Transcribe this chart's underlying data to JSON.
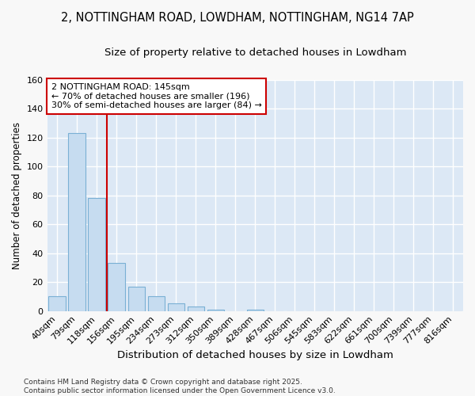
{
  "title_line1": "2, NOTTINGHAM ROAD, LOWDHAM, NOTTINGHAM, NG14 7AP",
  "title_line2": "Size of property relative to detached houses in Lowdham",
  "xlabel": "Distribution of detached houses by size in Lowdham",
  "ylabel": "Number of detached properties",
  "bar_values": [
    10,
    123,
    78,
    33,
    17,
    10,
    5,
    3,
    1,
    0,
    1,
    0,
    0,
    0,
    0,
    0,
    0,
    0,
    0,
    0,
    0
  ],
  "bar_labels": [
    "40sqm",
    "79sqm",
    "118sqm",
    "156sqm",
    "195sqm",
    "234sqm",
    "273sqm",
    "312sqm",
    "350sqm",
    "389sqm",
    "428sqm",
    "467sqm",
    "506sqm",
    "545sqm",
    "583sqm",
    "622sqm",
    "661sqm",
    "700sqm",
    "739sqm",
    "777sqm",
    "816sqm"
  ],
  "bar_color": "#c6dcf0",
  "bar_edge_color": "#7ab0d4",
  "vline_x": 2.5,
  "vline_color": "#cc0000",
  "annotation_text": "2 NOTTINGHAM ROAD: 145sqm\n← 70% of detached houses are smaller (196)\n30% of semi-detached houses are larger (84) →",
  "annotation_box_color": "#ffffff",
  "annotation_box_edge_color": "#cc0000",
  "ylim": [
    0,
    160
  ],
  "yticks": [
    0,
    20,
    40,
    60,
    80,
    100,
    120,
    140,
    160
  ],
  "footnote": "Contains HM Land Registry data © Crown copyright and database right 2025.\nContains public sector information licensed under the Open Government Licence v3.0.",
  "fig_background_color": "#f8f8f8",
  "plot_background_color": "#dce8f5",
  "grid_color": "#ffffff",
  "title_fontsize": 10.5,
  "subtitle_fontsize": 9.5,
  "xlabel_fontsize": 9.5,
  "ylabel_fontsize": 8.5,
  "tick_fontsize": 8,
  "footnote_fontsize": 6.5,
  "annotation_fontsize": 8
}
